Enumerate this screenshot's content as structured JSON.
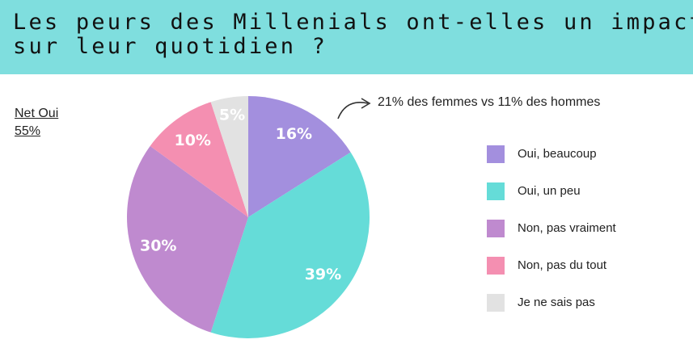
{
  "title": {
    "line1": "Les peurs des Millenials ont-elles un impact",
    "line2": "sur leur quotidien ?"
  },
  "net": {
    "label": "Net Oui",
    "value": "55%"
  },
  "annotation": "21% des femmes vs 11% des hommes",
  "colors": {
    "header": "#7fdede"
  },
  "chart_data": {
    "type": "pie",
    "categories": [
      "Oui, beaucoup",
      "Oui, un peu",
      "Non, pas vraiment",
      "Non, pas du tout",
      "Je ne sais pas"
    ],
    "values": [
      16,
      39,
      30,
      10,
      5
    ],
    "labels": [
      "16%",
      "39%",
      "30%",
      "10%",
      "5%"
    ],
    "colors": [
      "#a38fde",
      "#65dcd8",
      "#bf8acf",
      "#f48fb1",
      "#e2e2e2"
    ],
    "start": "top",
    "direction": "clockwise",
    "legend_position": "right"
  }
}
